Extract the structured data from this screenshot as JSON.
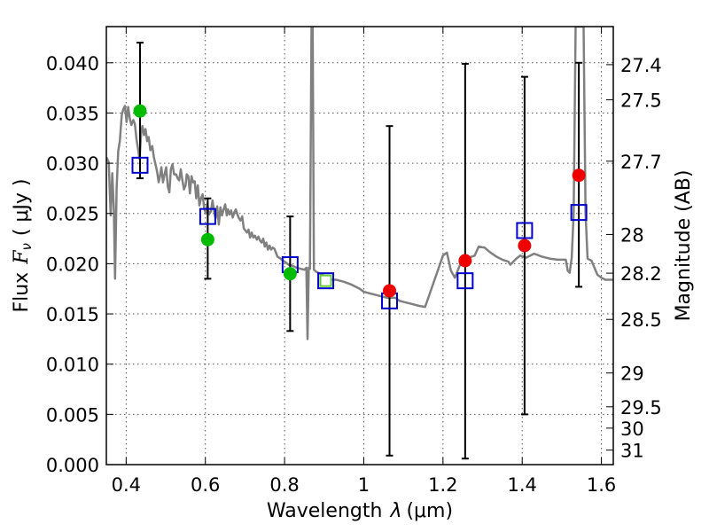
{
  "chart_data": {
    "type": "scatter",
    "xlabel_prefix": "Wavelength",
    "xlabel_symbol": "λ",
    "xlabel_unit": "(μm)",
    "ylabel_prefix": "Flux",
    "ylabel_symbol": "F",
    "ylabel_subscript": "ν",
    "ylabel_unit": "( μJy )",
    "y2label": "Magnitude (AB)",
    "xlim": [
      0.35,
      1.63
    ],
    "ylim": [
      0.0,
      0.0436
    ],
    "x_ticks": [
      0.4,
      0.6,
      0.8,
      1.0,
      1.2,
      1.4,
      1.6
    ],
    "x_tick_labels": [
      "0.4",
      "0.6",
      "0.8",
      "1",
      "1.2",
      "1.4",
      "1.6"
    ],
    "y_ticks": [
      0.0,
      0.005,
      0.01,
      0.015,
      0.02,
      0.025,
      0.03,
      0.035,
      0.04
    ],
    "y_tick_labels": [
      "0.000",
      "0.005",
      "0.010",
      "0.015",
      "0.020",
      "0.025",
      "0.030",
      "0.035",
      "0.040"
    ],
    "mag_ticks": [
      27.4,
      27.5,
      27.7,
      28,
      28.2,
      28.5,
      29,
      29.5,
      30,
      31
    ],
    "mag_tick_labels": [
      "27.4",
      "27.5",
      "27.7",
      "28",
      "28.2",
      "28.5",
      "29",
      "29.5",
      "30",
      "31"
    ],
    "colors": {
      "sed": "#808080",
      "model_box": "#0000cc",
      "detection": "#00bb00",
      "upper_limit": "#ee0000",
      "errorbar": "#000000",
      "green_box_fill": "#66cc33"
    },
    "errorbars": [
      {
        "x": 0.435,
        "low": 0.0285,
        "high": 0.042
      },
      {
        "x": 0.606,
        "low": 0.0185,
        "high": 0.0265
      },
      {
        "x": 0.814,
        "low": 0.0133,
        "high": 0.0247
      },
      {
        "x": 1.065,
        "low": 0.0009,
        "high": 0.0337
      },
      {
        "x": 1.256,
        "low": 0.0006,
        "high": 0.0399
      },
      {
        "x": 1.406,
        "low": 0.005,
        "high": 0.0386
      },
      {
        "x": 1.543,
        "low": 0.0177,
        "high": 0.04
      }
    ],
    "model_points": [
      {
        "x": 0.435,
        "y": 0.0298
      },
      {
        "x": 0.606,
        "y": 0.0247
      },
      {
        "x": 0.814,
        "y": 0.0199
      },
      {
        "x": 0.904,
        "y": 0.0183
      },
      {
        "x": 1.065,
        "y": 0.0163
      },
      {
        "x": 1.256,
        "y": 0.0183
      },
      {
        "x": 1.406,
        "y": 0.0233
      },
      {
        "x": 1.543,
        "y": 0.0251
      }
    ],
    "detections": [
      {
        "x": 0.435,
        "y": 0.0352
      },
      {
        "x": 0.606,
        "y": 0.0224
      },
      {
        "x": 0.814,
        "y": 0.019
      }
    ],
    "upper_limits": [
      {
        "x": 1.065,
        "y": 0.0173
      },
      {
        "x": 1.256,
        "y": 0.0203
      },
      {
        "x": 1.406,
        "y": 0.0218
      },
      {
        "x": 1.543,
        "y": 0.0288
      }
    ],
    "sed_line": [
      [
        0.35,
        0.0306
      ],
      [
        0.356,
        0.0301
      ],
      [
        0.361,
        0.0248
      ],
      [
        0.365,
        0.029
      ],
      [
        0.369,
        0.0253
      ],
      [
        0.372,
        0.0185
      ],
      [
        0.376,
        0.0275
      ],
      [
        0.38,
        0.0312
      ],
      [
        0.384,
        0.0322
      ],
      [
        0.389,
        0.0348
      ],
      [
        0.393,
        0.0354
      ],
      [
        0.397,
        0.0357
      ],
      [
        0.401,
        0.0341
      ],
      [
        0.405,
        0.0356
      ],
      [
        0.409,
        0.0345
      ],
      [
        0.413,
        0.0338
      ],
      [
        0.418,
        0.0343
      ],
      [
        0.422,
        0.0339
      ],
      [
        0.426,
        0.0324
      ],
      [
        0.43,
        0.0314
      ],
      [
        0.434,
        0.0304
      ],
      [
        0.438,
        0.033
      ],
      [
        0.441,
        0.0337
      ],
      [
        0.445,
        0.0328
      ],
      [
        0.449,
        0.0334
      ],
      [
        0.453,
        0.0322
      ],
      [
        0.457,
        0.0326
      ],
      [
        0.461,
        0.0313
      ],
      [
        0.466,
        0.0317
      ],
      [
        0.47,
        0.0306
      ],
      [
        0.474,
        0.0299
      ],
      [
        0.478,
        0.0292
      ],
      [
        0.482,
        0.0281
      ],
      [
        0.485,
        0.0286
      ],
      [
        0.489,
        0.0296
      ],
      [
        0.493,
        0.0281
      ],
      [
        0.497,
        0.0289
      ],
      [
        0.501,
        0.0296
      ],
      [
        0.505,
        0.0277
      ],
      [
        0.509,
        0.0271
      ],
      [
        0.513,
        0.0294
      ],
      [
        0.517,
        0.0299
      ],
      [
        0.521,
        0.0289
      ],
      [
        0.526,
        0.0289
      ],
      [
        0.53,
        0.0285
      ],
      [
        0.534,
        0.0283
      ],
      [
        0.538,
        0.0294
      ],
      [
        0.542,
        0.0283
      ],
      [
        0.546,
        0.0274
      ],
      [
        0.55,
        0.0278
      ],
      [
        0.553,
        0.0289
      ],
      [
        0.557,
        0.0287
      ],
      [
        0.561,
        0.027
      ],
      [
        0.565,
        0.0287
      ],
      [
        0.569,
        0.0281
      ],
      [
        0.573,
        0.0282
      ],
      [
        0.577,
        0.0265
      ],
      [
        0.581,
        0.0278
      ],
      [
        0.585,
        0.0258
      ],
      [
        0.589,
        0.0265
      ],
      [
        0.593,
        0.0269
      ],
      [
        0.597,
        0.0255
      ],
      [
        0.601,
        0.025
      ],
      [
        0.605,
        0.026
      ],
      [
        0.609,
        0.0249
      ],
      [
        0.614,
        0.0252
      ],
      [
        0.618,
        0.0263
      ],
      [
        0.622,
        0.0252
      ],
      [
        0.626,
        0.0245
      ],
      [
        0.63,
        0.0257
      ],
      [
        0.634,
        0.0239
      ],
      [
        0.638,
        0.0256
      ],
      [
        0.642,
        0.0248
      ],
      [
        0.646,
        0.0254
      ],
      [
        0.65,
        0.0259
      ],
      [
        0.654,
        0.0248
      ],
      [
        0.657,
        0.0254
      ],
      [
        0.661,
        0.0249
      ],
      [
        0.665,
        0.0253
      ],
      [
        0.669,
        0.0246
      ],
      [
        0.673,
        0.0251
      ],
      [
        0.677,
        0.0254
      ],
      [
        0.681,
        0.0249
      ],
      [
        0.685,
        0.0245
      ],
      [
        0.689,
        0.0243
      ],
      [
        0.693,
        0.0247
      ],
      [
        0.697,
        0.0235
      ],
      [
        0.701,
        0.0233
      ],
      [
        0.705,
        0.0231
      ],
      [
        0.709,
        0.0234
      ],
      [
        0.713,
        0.0226
      ],
      [
        0.717,
        0.0231
      ],
      [
        0.721,
        0.0226
      ],
      [
        0.725,
        0.0228
      ],
      [
        0.73,
        0.0224
      ],
      [
        0.734,
        0.0227
      ],
      [
        0.738,
        0.0223
      ],
      [
        0.742,
        0.0221
      ],
      [
        0.746,
        0.0225
      ],
      [
        0.75,
        0.0217
      ],
      [
        0.754,
        0.0221
      ],
      [
        0.758,
        0.0214
      ],
      [
        0.762,
        0.0218
      ],
      [
        0.766,
        0.0214
      ],
      [
        0.77,
        0.0216
      ],
      [
        0.774,
        0.0215
      ],
      [
        0.778,
        0.0211
      ],
      [
        0.782,
        0.0207
      ],
      [
        0.79,
        0.0205
      ],
      [
        0.8,
        0.0202
      ],
      [
        0.81,
        0.0199
      ],
      [
        0.82,
        0.0198
      ],
      [
        0.83,
        0.0196
      ],
      [
        0.84,
        0.0195
      ],
      [
        0.85,
        0.0194
      ],
      [
        0.855,
        0.0196
      ],
      [
        0.858,
        0.0125
      ],
      [
        0.861,
        0.0196
      ],
      [
        0.864,
        0.0195
      ],
      [
        0.868,
        0.0436
      ],
      [
        0.871,
        0.0436
      ],
      [
        0.874,
        0.0194
      ],
      [
        0.88,
        0.0192
      ],
      [
        0.89,
        0.019
      ],
      [
        0.9,
        0.0188
      ],
      [
        0.91,
        0.0186
      ],
      [
        0.92,
        0.0184
      ],
      [
        0.93,
        0.0184
      ],
      [
        0.95,
        0.0182
      ],
      [
        0.97,
        0.0179
      ],
      [
        0.99,
        0.0175
      ],
      [
        1.0,
        0.0172
      ],
      [
        1.02,
        0.017
      ],
      [
        1.04,
        0.0168
      ],
      [
        1.06,
        0.0166
      ],
      [
        1.08,
        0.0166
      ],
      [
        1.09,
        0.0163
      ],
      [
        1.12,
        0.016
      ],
      [
        1.14,
        0.0158
      ],
      [
        1.155,
        0.0157
      ],
      [
        1.17,
        0.0174
      ],
      [
        1.185,
        0.0191
      ],
      [
        1.2,
        0.0208
      ],
      [
        1.21,
        0.0211
      ],
      [
        1.22,
        0.0193
      ],
      [
        1.23,
        0.0186
      ],
      [
        1.24,
        0.0196
      ],
      [
        1.25,
        0.0205
      ],
      [
        1.265,
        0.0206
      ],
      [
        1.28,
        0.0208
      ],
      [
        1.29,
        0.0217
      ],
      [
        1.305,
        0.0216
      ],
      [
        1.32,
        0.0211
      ],
      [
        1.335,
        0.0207
      ],
      [
        1.35,
        0.0204
      ],
      [
        1.365,
        0.0202
      ],
      [
        1.37,
        0.0199
      ],
      [
        1.385,
        0.0205
      ],
      [
        1.395,
        0.0208
      ],
      [
        1.41,
        0.0206
      ],
      [
        1.43,
        0.021
      ],
      [
        1.45,
        0.0207
      ],
      [
        1.47,
        0.0205
      ],
      [
        1.49,
        0.0204
      ],
      [
        1.51,
        0.0204
      ],
      [
        1.515,
        0.0193
      ],
      [
        1.52,
        0.0191
      ],
      [
        1.525,
        0.0206
      ],
      [
        1.53,
        0.025
      ],
      [
        1.535,
        0.0436
      ],
      [
        1.555,
        0.0436
      ],
      [
        1.56,
        0.025
      ],
      [
        1.565,
        0.0205
      ],
      [
        1.575,
        0.0203
      ],
      [
        1.59,
        0.0189
      ],
      [
        1.6,
        0.0186
      ],
      [
        1.61,
        0.0184
      ],
      [
        1.63,
        0.0184
      ]
    ]
  }
}
